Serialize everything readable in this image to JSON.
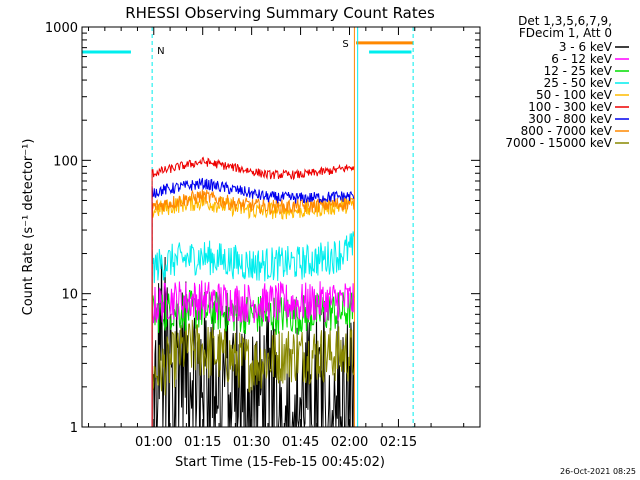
{
  "chart_data": {
    "type": "line",
    "title": "RHESSI Observing Summary Count Rates",
    "xlabel": "Start Time (15-Feb-15 00:45:02)",
    "ylabel": "Count Rate (s⁻¹ detector⁻¹)",
    "y_scale": "log",
    "ylim": [
      1,
      1000
    ],
    "xlim_minutes": [
      -22,
      100
    ],
    "x_ticks": [
      {
        "minute": 0,
        "label": "01:00"
      },
      {
        "minute": 15,
        "label": "01:15"
      },
      {
        "minute": 30,
        "label": "01:30"
      },
      {
        "minute": 45,
        "label": "01:45"
      },
      {
        "minute": 60,
        "label": "02:00"
      },
      {
        "minute": 75,
        "label": "02:15"
      }
    ],
    "y_ticks": [
      {
        "value": 1,
        "label": "1"
      },
      {
        "value": 10,
        "label": "10"
      },
      {
        "value": 100,
        "label": "100"
      },
      {
        "value": 1000,
        "label": "1000"
      }
    ],
    "legend_header": [
      "Det 1,3,5,6,7,9,",
      "FDecim 1, Att 0"
    ],
    "legend_position": "right, outside plot",
    "timestamp": "26-Oct-2021 08:25",
    "data_start_minute": -0.5,
    "data_end_minute": 61.5,
    "series": [
      {
        "name": "3 - 6 keV",
        "color": "#000000",
        "points": [
          [
            0,
            1.5
          ],
          [
            2,
            6.0
          ],
          [
            5,
            4.0
          ],
          [
            10,
            3.0
          ],
          [
            20,
            2.5
          ],
          [
            30,
            2.0
          ],
          [
            40,
            1.5
          ],
          [
            50,
            2.0
          ],
          [
            61,
            2.0
          ]
        ]
      },
      {
        "name": "6 - 12 keV",
        "color": "#ff00ff",
        "points": [
          [
            0,
            8.0
          ],
          [
            5,
            9.0
          ],
          [
            15,
            9.0
          ],
          [
            30,
            8.5
          ],
          [
            45,
            8.5
          ],
          [
            61,
            9.0
          ]
        ]
      },
      {
        "name": "12 - 25 keV",
        "color": "#00dd00",
        "points": [
          [
            0,
            7.0
          ],
          [
            5,
            7.5
          ],
          [
            15,
            7.5
          ],
          [
            30,
            7.0
          ],
          [
            45,
            7.0
          ],
          [
            61,
            7.5
          ]
        ]
      },
      {
        "name": "25 - 50 keV",
        "color": "#00eeee",
        "points": [
          [
            0,
            16.0
          ],
          [
            5,
            17.5
          ],
          [
            15,
            19.0
          ],
          [
            30,
            16.5
          ],
          [
            45,
            17.0
          ],
          [
            55,
            19.0
          ],
          [
            61,
            22.0
          ]
        ]
      },
      {
        "name": "50 - 100 keV",
        "color": "#ffbb00",
        "points": [
          [
            0,
            42.0
          ],
          [
            8,
            47.0
          ],
          [
            15,
            49.0
          ],
          [
            30,
            42.0
          ],
          [
            45,
            42.0
          ],
          [
            61,
            47.0
          ]
        ]
      },
      {
        "name": "100 - 300 keV",
        "color": "#ee0000",
        "points": [
          [
            0,
            80.0
          ],
          [
            8,
            90.0
          ],
          [
            15,
            98.0
          ],
          [
            25,
            88.0
          ],
          [
            35,
            78.0
          ],
          [
            45,
            78.0
          ],
          [
            55,
            84.0
          ],
          [
            61,
            89.0
          ]
        ]
      },
      {
        "name": "300 - 800 keV",
        "color": "#0000ee",
        "points": [
          [
            0,
            58.0
          ],
          [
            8,
            63.0
          ],
          [
            15,
            67.0
          ],
          [
            25,
            60.0
          ],
          [
            35,
            53.0
          ],
          [
            45,
            52.0
          ],
          [
            61,
            54.0
          ]
        ]
      },
      {
        "name": "800 - 7000 keV",
        "color": "#ff8800",
        "points": [
          [
            0,
            45.0
          ],
          [
            8,
            50.0
          ],
          [
            15,
            54.0
          ],
          [
            25,
            47.0
          ],
          [
            35,
            45.0
          ],
          [
            45,
            45.0
          ],
          [
            61,
            48.0
          ]
        ]
      },
      {
        "name": "7000 - 15000 keV",
        "color": "#888800",
        "points": [
          [
            0,
            2.5
          ],
          [
            5,
            3.0
          ],
          [
            10,
            4.0
          ],
          [
            20,
            3.5
          ],
          [
            30,
            3.0
          ],
          [
            40,
            3.5
          ],
          [
            50,
            3.5
          ],
          [
            61,
            3.5
          ]
        ]
      }
    ],
    "night_level": 650,
    "night_color": "#00eeee",
    "night_intervals": [
      [
        -22,
        -7
      ],
      [
        66,
        79
      ]
    ],
    "night_boundaries": [
      -0.5,
      62.5,
      79.5
    ],
    "night_label": "N",
    "saa_level": 760,
    "saa_color": "#ff8800",
    "saa_intervals": [
      [
        62,
        79.5
      ]
    ],
    "saa_boundaries": [
      61.5
    ],
    "saa_label": "S"
  }
}
